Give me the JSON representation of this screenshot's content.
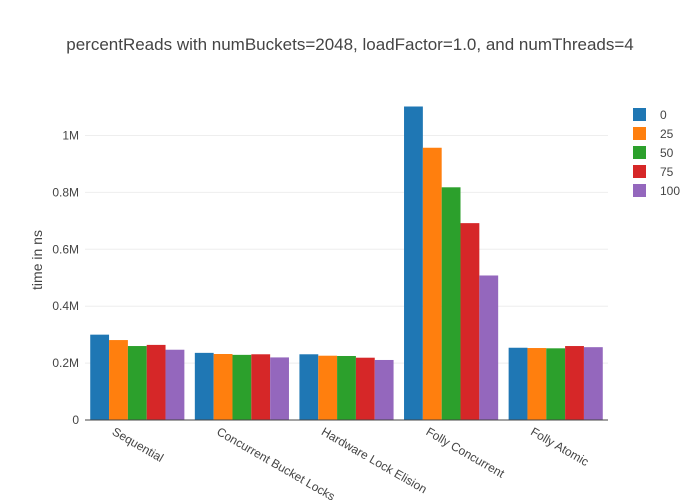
{
  "chart_data": {
    "type": "bar",
    "title": "percentReads with numBuckets=2048, loadFactor=1.0, and numThreads=4",
    "xlabel": "",
    "ylabel": "time in ns",
    "categories": [
      "Sequential",
      "Concurrent Bucket Locks",
      "Hardware Lock Elision",
      "Folly Concurrent",
      "Folly Atomic"
    ],
    "series": [
      {
        "name": "0",
        "color": "#1f77b4",
        "values": [
          300000,
          236000,
          231000,
          1102000,
          254000
        ]
      },
      {
        "name": "25",
        "color": "#ff7f0e",
        "values": [
          281000,
          232000,
          226000,
          957000,
          253000
        ]
      },
      {
        "name": "50",
        "color": "#2ca02c",
        "values": [
          260000,
          229000,
          225000,
          818000,
          252000
        ]
      },
      {
        "name": "75",
        "color": "#d62728",
        "values": [
          264000,
          231000,
          219000,
          692000,
          260000
        ]
      },
      {
        "name": "100",
        "color": "#9467bd",
        "values": [
          247000,
          220000,
          211000,
          508000,
          256000
        ]
      }
    ],
    "yticks": [
      0,
      200000,
      400000,
      600000,
      800000,
      1000000
    ],
    "ytick_labels": [
      "0",
      "0.2M",
      "0.4M",
      "0.6M",
      "0.8M",
      "1M"
    ],
    "ylim": [
      0,
      1160000
    ],
    "grid": true,
    "legend_position": "top-right"
  }
}
